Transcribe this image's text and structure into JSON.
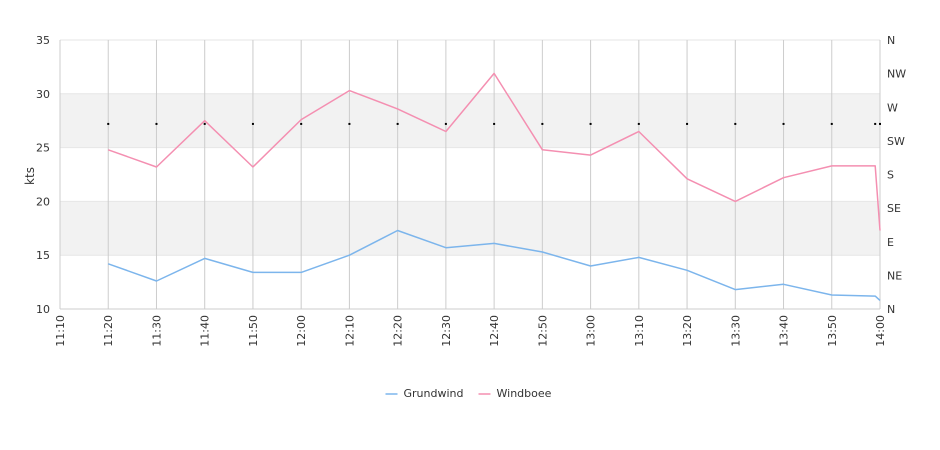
{
  "chart_data": {
    "type": "line",
    "ylabel": "kts",
    "ylim": [
      10,
      35
    ],
    "yticks": [
      10,
      15,
      20,
      25,
      30,
      35
    ],
    "bands": [
      [
        15,
        20
      ],
      [
        25,
        30
      ]
    ],
    "x_time_range": [
      "11:10",
      "14:00"
    ],
    "x_tick_labels": [
      "11:10",
      "11:20",
      "11:30",
      "11:40",
      "11:50",
      "12:00",
      "12:10",
      "12:20",
      "12:30",
      "12:40",
      "12:50",
      "13:00",
      "13:10",
      "13:20",
      "13:30",
      "13:40",
      "13:50",
      "14:00"
    ],
    "direction_axis": {
      "labels": [
        "N",
        "NE",
        "E",
        "SE",
        "S",
        "SW",
        "W",
        "NW",
        "N"
      ]
    },
    "series": [
      {
        "name": "Grundwind",
        "color": "#7cb5ec",
        "x": [
          "11:20",
          "11:30",
          "11:40",
          "11:50",
          "12:00",
          "12:10",
          "12:20",
          "12:30",
          "12:40",
          "12:50",
          "13:00",
          "13:10",
          "13:20",
          "13:30",
          "13:40",
          "13:50",
          "13:59",
          "14:00"
        ],
        "values": [
          14.2,
          12.6,
          14.7,
          13.4,
          13.4,
          15.0,
          17.3,
          15.7,
          16.1,
          15.3,
          14.0,
          14.8,
          13.6,
          11.8,
          12.3,
          11.3,
          11.2,
          10.8
        ]
      },
      {
        "name": "Windboee",
        "color": "#f48fb1",
        "x": [
          "11:20",
          "11:30",
          "11:40",
          "11:50",
          "12:00",
          "12:10",
          "12:20",
          "12:30",
          "12:40",
          "12:50",
          "13:00",
          "13:10",
          "13:20",
          "13:30",
          "13:40",
          "13:50",
          "13:59",
          "14:00"
        ],
        "values": [
          24.8,
          23.2,
          27.5,
          23.2,
          27.6,
          30.3,
          28.6,
          26.5,
          31.9,
          24.8,
          24.3,
          26.5,
          22.1,
          20.0,
          22.2,
          23.3,
          23.3,
          17.3
        ]
      }
    ],
    "direction_markers": {
      "x": [
        "11:20",
        "11:30",
        "11:40",
        "11:50",
        "12:00",
        "12:10",
        "12:20",
        "12:30",
        "12:40",
        "12:50",
        "13:00",
        "13:10",
        "13:20",
        "13:30",
        "13:40",
        "13:50",
        "13:59",
        "14:00"
      ],
      "value": 27.2
    },
    "legend": {
      "position": "bottom-center",
      "items": [
        "Grundwind",
        "Windboee"
      ]
    }
  }
}
